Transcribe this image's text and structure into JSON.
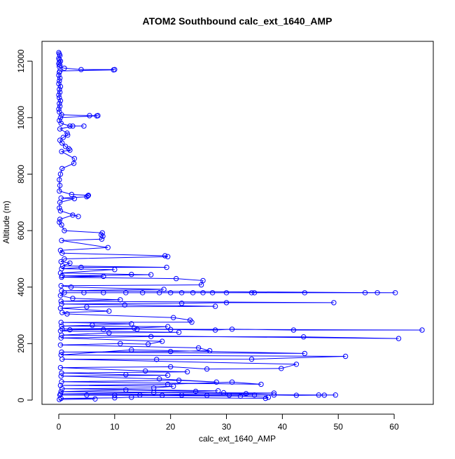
{
  "chart_data": {
    "type": "scatter",
    "title": "ATOM2 Southbound calc_ext_1640_AMP",
    "xlabel": "calc_ext_1640_AMP",
    "ylabel": "Altitude (m)",
    "xlim": [
      -3,
      67
    ],
    "ylim": [
      -150,
      12700
    ],
    "xticks": [
      0,
      10,
      20,
      30,
      40,
      50,
      60
    ],
    "yticks": [
      0,
      2000,
      4000,
      6000,
      8000,
      10000,
      12000
    ],
    "grid": false,
    "legend": "none",
    "point_style": "open-circle",
    "connected_by_lines": true,
    "series": [
      {
        "color": "#0000ff",
        "points": [
          [
            0.0,
            12300
          ],
          [
            0.1,
            12250
          ],
          [
            0.2,
            12200
          ],
          [
            0.0,
            12100
          ],
          [
            0.1,
            12050
          ],
          [
            0.3,
            12000
          ],
          [
            0.1,
            11950
          ],
          [
            0.0,
            11900
          ],
          [
            0.2,
            11850
          ],
          [
            0.1,
            11800
          ],
          [
            1.0,
            11750
          ],
          [
            4.0,
            11700
          ],
          [
            10.0,
            11700
          ],
          [
            9.8,
            11690
          ],
          [
            0.2,
            11650
          ],
          [
            0.1,
            11600
          ],
          [
            0.0,
            11500
          ],
          [
            0.2,
            11400
          ],
          [
            0.1,
            11300
          ],
          [
            0.0,
            11200
          ],
          [
            0.3,
            11100
          ],
          [
            0.1,
            11000
          ],
          [
            0.2,
            10900
          ],
          [
            0.0,
            10800
          ],
          [
            0.1,
            10700
          ],
          [
            0.3,
            10600
          ],
          [
            0.1,
            10500
          ],
          [
            0.2,
            10400
          ],
          [
            0.0,
            10300
          ],
          [
            0.1,
            10200
          ],
          [
            0.5,
            10100
          ],
          [
            5.5,
            10070
          ],
          [
            7.0,
            10070
          ],
          [
            6.8,
            10060
          ],
          [
            0.3,
            10000
          ],
          [
            0.1,
            9900
          ],
          [
            0.4,
            9800
          ],
          [
            2.0,
            9700
          ],
          [
            4.5,
            9700
          ],
          [
            2.5,
            9700
          ],
          [
            0.2,
            9600
          ],
          [
            1.5,
            9450
          ],
          [
            1.6,
            9380
          ],
          [
            0.8,
            9300
          ],
          [
            0.2,
            9200
          ],
          [
            0.6,
            9100
          ],
          [
            1.2,
            8980
          ],
          [
            1.8,
            8900
          ],
          [
            2.0,
            8850
          ],
          [
            0.5,
            8800
          ],
          [
            2.8,
            8550
          ],
          [
            2.7,
            8380
          ],
          [
            0.6,
            8200
          ],
          [
            0.3,
            8000
          ],
          [
            0.1,
            7800
          ],
          [
            0.2,
            7600
          ],
          [
            0.1,
            7400
          ],
          [
            2.3,
            7280
          ],
          [
            5.3,
            7250
          ],
          [
            5.2,
            7230
          ],
          [
            5.0,
            7200
          ],
          [
            0.4,
            7150
          ],
          [
            2.8,
            7130
          ],
          [
            0.2,
            7000
          ],
          [
            0.1,
            6800
          ],
          [
            0.3,
            6700
          ],
          [
            3.5,
            6500
          ],
          [
            2.5,
            6550
          ],
          [
            0.2,
            6400
          ],
          [
            0.1,
            6300
          ],
          [
            0.5,
            6200
          ],
          [
            1.0,
            6000
          ],
          [
            7.8,
            5920
          ],
          [
            7.6,
            5850
          ],
          [
            7.9,
            5800
          ],
          [
            7.7,
            5700
          ],
          [
            0.5,
            5650
          ],
          [
            8.8,
            5400
          ],
          [
            0.3,
            5300
          ],
          [
            0.6,
            5200
          ],
          [
            19.0,
            5110
          ],
          [
            19.5,
            5080
          ],
          [
            1.0,
            5000
          ],
          [
            0.4,
            4900
          ],
          [
            2.0,
            4850
          ],
          [
            0.7,
            4750
          ],
          [
            19.3,
            4700
          ],
          [
            4.0,
            4700
          ],
          [
            0.5,
            4650
          ],
          [
            10.0,
            4620
          ],
          [
            0.3,
            4500
          ],
          [
            13.0,
            4450
          ],
          [
            16.5,
            4440
          ],
          [
            0.6,
            4400
          ],
          [
            8.0,
            4380
          ],
          [
            0.5,
            4350
          ],
          [
            21.0,
            4300
          ],
          [
            25.8,
            4230
          ],
          [
            25.5,
            4080
          ],
          [
            0.4,
            4050
          ],
          [
            2.2,
            4000
          ],
          [
            18.8,
            3920
          ],
          [
            0.5,
            3870
          ],
          [
            60.2,
            3800
          ],
          [
            57.0,
            3800
          ],
          [
            54.8,
            3800
          ],
          [
            44.0,
            3800
          ],
          [
            35.0,
            3800
          ],
          [
            34.5,
            3800
          ],
          [
            30.0,
            3800
          ],
          [
            27.5,
            3800
          ],
          [
            25.8,
            3800
          ],
          [
            24.0,
            3800
          ],
          [
            22.0,
            3800
          ],
          [
            20.0,
            3800
          ],
          [
            18.0,
            3800
          ],
          [
            15.0,
            3800
          ],
          [
            12.0,
            3800
          ],
          [
            8.0,
            3800
          ],
          [
            4.5,
            3800
          ],
          [
            1.0,
            3800
          ],
          [
            0.3,
            3700
          ],
          [
            2.5,
            3600
          ],
          [
            11.0,
            3550
          ],
          [
            0.4,
            3500
          ],
          [
            49.2,
            3450
          ],
          [
            30.0,
            3450
          ],
          [
            22.0,
            3430
          ],
          [
            0.5,
            3400
          ],
          [
            11.8,
            3370
          ],
          [
            28.0,
            3320
          ],
          [
            5.0,
            3300
          ],
          [
            0.3,
            3250
          ],
          [
            9.0,
            3150
          ],
          [
            0.6,
            3100
          ],
          [
            1.5,
            3050
          ],
          [
            20.5,
            2920
          ],
          [
            23.5,
            2830
          ],
          [
            23.8,
            2760
          ],
          [
            0.4,
            2750
          ],
          [
            13.0,
            2700
          ],
          [
            6.0,
            2650
          ],
          [
            0.5,
            2620
          ],
          [
            19.5,
            2600
          ],
          [
            13.5,
            2550
          ],
          [
            0.6,
            2520
          ],
          [
            65.0,
            2480
          ],
          [
            42.0,
            2480
          ],
          [
            31.0,
            2510
          ],
          [
            28.0,
            2480
          ],
          [
            20.0,
            2500
          ],
          [
            14.0,
            2510
          ],
          [
            8.0,
            2500
          ],
          [
            2.0,
            2490
          ],
          [
            0.3,
            2450
          ],
          [
            21.5,
            2400
          ],
          [
            9.0,
            2380
          ],
          [
            0.5,
            2300
          ],
          [
            60.8,
            2180
          ],
          [
            43.8,
            2240
          ],
          [
            16.5,
            2250
          ],
          [
            0.4,
            2200
          ],
          [
            18.5,
            2080
          ],
          [
            16.0,
            1980
          ],
          [
            11.0,
            2000
          ],
          [
            0.3,
            1950
          ],
          [
            25.0,
            1850
          ],
          [
            27.0,
            1750
          ],
          [
            20.0,
            1720
          ],
          [
            0.5,
            1700
          ],
          [
            44.0,
            1650
          ],
          [
            13.0,
            1780
          ],
          [
            0.4,
            1600
          ],
          [
            51.3,
            1550
          ],
          [
            34.5,
            1450
          ],
          [
            17.5,
            1440
          ],
          [
            0.6,
            1450
          ],
          [
            42.5,
            1270
          ],
          [
            39.8,
            1120
          ],
          [
            26.5,
            1100
          ],
          [
            20.0,
            1180
          ],
          [
            0.3,
            1150
          ],
          [
            15.5,
            1030
          ],
          [
            23.0,
            1000
          ],
          [
            0.5,
            960
          ],
          [
            12.0,
            900
          ],
          [
            19.5,
            880
          ],
          [
            0.4,
            850
          ],
          [
            18.0,
            750
          ],
          [
            28.2,
            640
          ],
          [
            21.5,
            700
          ],
          [
            0.5,
            650
          ],
          [
            36.2,
            560
          ],
          [
            31.0,
            640
          ],
          [
            19.5,
            560
          ],
          [
            0.3,
            520
          ],
          [
            20.5,
            490
          ],
          [
            17.0,
            430
          ],
          [
            0.6,
            400
          ],
          [
            28.5,
            330
          ],
          [
            24.5,
            310
          ],
          [
            12.0,
            360
          ],
          [
            0.4,
            300
          ],
          [
            29.5,
            260
          ],
          [
            38.5,
            250
          ],
          [
            33.5,
            230
          ],
          [
            17.0,
            270
          ],
          [
            0.3,
            220
          ],
          [
            49.5,
            180
          ],
          [
            46.5,
            180
          ],
          [
            47.5,
            175
          ],
          [
            42.5,
            170
          ],
          [
            38.5,
            180
          ],
          [
            35.0,
            180
          ],
          [
            30.5,
            175
          ],
          [
            26.5,
            165
          ],
          [
            22.0,
            180
          ],
          [
            18.5,
            170
          ],
          [
            14.5,
            180
          ],
          [
            10.0,
            175
          ],
          [
            5.0,
            180
          ],
          [
            0.2,
            180
          ],
          [
            32.5,
            140
          ],
          [
            37.5,
            100
          ],
          [
            37.0,
            60
          ],
          [
            13.0,
            100
          ],
          [
            10.0,
            80
          ],
          [
            0.4,
            60
          ],
          [
            6.5,
            40
          ],
          [
            0.1,
            20
          ]
        ]
      }
    ]
  }
}
